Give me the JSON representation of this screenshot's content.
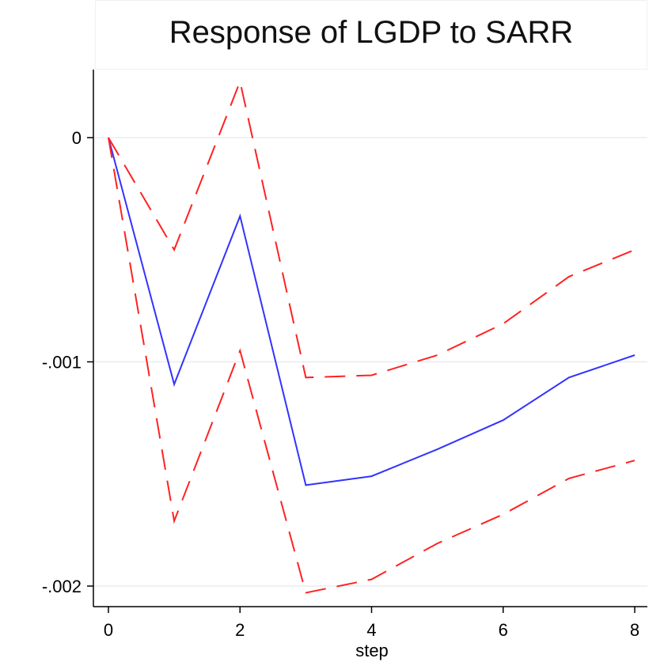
{
  "chart_data": {
    "type": "line",
    "title": "Response of LGDP to SARR",
    "xlabel": "step",
    "ylabel": "",
    "xlim": [
      0,
      8
    ],
    "ylim": [
      -0.00204,
      0.00029
    ],
    "x_ticks": [
      0,
      2,
      4,
      6,
      8
    ],
    "x_tick_labels": [
      "0",
      "2",
      "4",
      "6",
      "8"
    ],
    "y_ticks": [
      0,
      -0.001,
      -0.002
    ],
    "y_tick_labels": [
      "0",
      "-.001",
      "-.002"
    ],
    "grid": true,
    "legend": "none",
    "x": [
      0,
      1,
      2,
      3,
      4,
      5,
      6,
      7,
      8
    ],
    "series": [
      {
        "role": "irf",
        "style": "solid",
        "color": "#3333ff",
        "values": [
          0,
          -0.0011,
          -0.00035,
          -0.00155,
          -0.00151,
          -0.00139,
          -0.00126,
          -0.00107,
          -0.00097
        ]
      },
      {
        "role": "upper-ci",
        "style": "dashed",
        "color": "#ff2222",
        "values": [
          0,
          -0.0005,
          0.00025,
          -0.00107,
          -0.00106,
          -0.00097,
          -0.00083,
          -0.00062,
          -0.0005
        ]
      },
      {
        "role": "lower-ci",
        "style": "dashed",
        "color": "#ff2222",
        "values": [
          0,
          -0.00171,
          -0.00095,
          -0.00203,
          -0.00197,
          -0.00181,
          -0.00168,
          -0.00152,
          -0.00144
        ]
      }
    ]
  }
}
